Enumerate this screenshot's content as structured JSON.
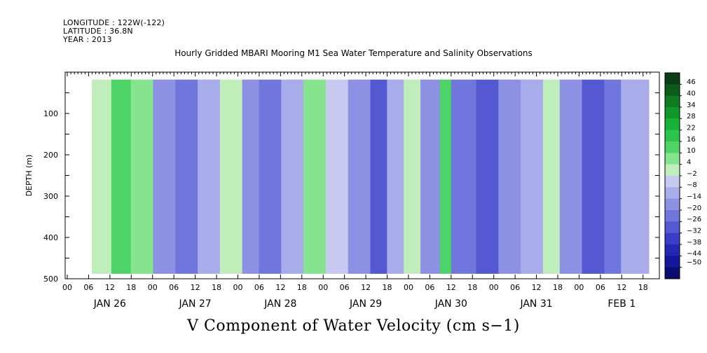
{
  "header": {
    "longitude": "LONGITUDE : 122W(-122)",
    "latitude": "LATITUDE : 36.8N",
    "year": "YEAR : 2013"
  },
  "chart_data": {
    "type": "heatmap",
    "title": "Hourly Gridded MBARI Mooring M1 Sea Water Temperature and Salinity Observations",
    "footer_label": "V Component of Water Velocity (cm s−1)",
    "ylabel": "DEPTH (m)",
    "ylim": [
      500,
      0
    ],
    "y_ticks": [
      100,
      200,
      300,
      400,
      500
    ],
    "x_hour_labels": [
      "00",
      "06",
      "12",
      "18",
      "00",
      "06",
      "12",
      "18",
      "00",
      "06",
      "12",
      "18",
      "00",
      "06",
      "12",
      "18",
      "00",
      "06",
      "12",
      "18",
      "00",
      "06",
      "12",
      "18",
      "00",
      "06",
      "12",
      "18"
    ],
    "x_day_labels": [
      "JAN 26",
      "JAN 27",
      "JAN 28",
      "JAN 29",
      "JAN 30",
      "JAN 31",
      "FEB  1"
    ],
    "colorbar": {
      "labels": [
        "46",
        "40",
        "34",
        "28",
        "22",
        "16",
        "10",
        "4",
        "−2",
        "−8",
        "−14",
        "−20",
        "−26",
        "−32",
        "−38",
        "−44",
        "−50"
      ],
      "colors": [
        "#0a3d16",
        "#0b5a1c",
        "#0e7a22",
        "#10972a",
        "#16b236",
        "#2cc54b",
        "#4ed466",
        "#86e48f",
        "#c0eebb",
        "#c7c9f0",
        "#a8acea",
        "#8d91e4",
        "#7176dc",
        "#5459d2",
        "#3a3ec6",
        "#2327b2",
        "#131799",
        "#0a0c70"
      ]
    },
    "bands": [
      {
        "t0": 0.0,
        "t1": 0.035,
        "v": 4
      },
      {
        "t0": 0.035,
        "t1": 0.07,
        "v": 16
      },
      {
        "t0": 0.07,
        "t1": 0.11,
        "v": 10
      },
      {
        "t0": 0.11,
        "t1": 0.15,
        "v": -14
      },
      {
        "t0": 0.15,
        "t1": 0.19,
        "v": -20
      },
      {
        "t0": 0.19,
        "t1": 0.23,
        "v": -8
      },
      {
        "t0": 0.23,
        "t1": 0.27,
        "v": 4
      },
      {
        "t0": 0.27,
        "t1": 0.3,
        "v": -14
      },
      {
        "t0": 0.3,
        "t1": 0.34,
        "v": -20
      },
      {
        "t0": 0.34,
        "t1": 0.38,
        "v": -8
      },
      {
        "t0": 0.38,
        "t1": 0.42,
        "v": 10
      },
      {
        "t0": 0.42,
        "t1": 0.46,
        "v": -2
      },
      {
        "t0": 0.46,
        "t1": 0.5,
        "v": -14
      },
      {
        "t0": 0.5,
        "t1": 0.53,
        "v": -26
      },
      {
        "t0": 0.53,
        "t1": 0.56,
        "v": -8
      },
      {
        "t0": 0.56,
        "t1": 0.59,
        "v": 4
      },
      {
        "t0": 0.59,
        "t1": 0.625,
        "v": -14
      },
      {
        "t0": 0.625,
        "t1": 0.645,
        "v": 16
      },
      {
        "t0": 0.645,
        "t1": 0.69,
        "v": -20
      },
      {
        "t0": 0.69,
        "t1": 0.73,
        "v": -26
      },
      {
        "t0": 0.73,
        "t1": 0.77,
        "v": -14
      },
      {
        "t0": 0.77,
        "t1": 0.81,
        "v": -8
      },
      {
        "t0": 0.81,
        "t1": 0.84,
        "v": 4
      },
      {
        "t0": 0.84,
        "t1": 0.88,
        "v": -14
      },
      {
        "t0": 0.88,
        "t1": 0.92,
        "v": -26
      },
      {
        "t0": 0.92,
        "t1": 0.95,
        "v": -20
      },
      {
        "t0": 0.95,
        "t1": 1.0,
        "v": -8
      }
    ]
  }
}
